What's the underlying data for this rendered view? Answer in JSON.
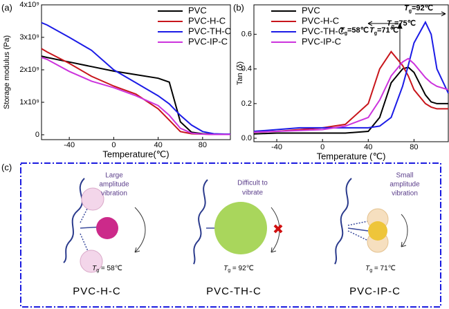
{
  "chart_data": [
    {
      "type": "line",
      "panel_label": "(a)",
      "ylabel": "Storage modulus (Pa)",
      "xlabel": "Temperature(℃)",
      "xlim": [
        -65,
        105
      ],
      "xticks": [
        -40,
        0,
        40,
        80
      ],
      "ylim": [
        -150000000,
        4000000000
      ],
      "yticks": [
        0,
        {
          "value": 1000000000,
          "label": "1x10⁹"
        },
        {
          "value": 2000000000,
          "label": "2x10⁹"
        },
        {
          "value": 3000000000,
          "label": "3x10⁹"
        },
        {
          "value": 4000000000,
          "label": "4x10⁹"
        }
      ],
      "legend": "top-right",
      "x": [
        -65,
        -60,
        -40,
        -20,
        0,
        20,
        40,
        50,
        60,
        70,
        80,
        90,
        100,
        105
      ],
      "series": [
        {
          "name": "PVC",
          "color": "#000000",
          "values": [
            2420000000,
            2380000000,
            2240000000,
            2100000000,
            1960000000,
            1850000000,
            1740000000,
            1620000000,
            400000000,
            80000000,
            30000000,
            20000000,
            10000000,
            10000000
          ]
        },
        {
          "name": "PVC-H-C",
          "color": "#c8151b",
          "values": [
            2650000000,
            2550000000,
            2200000000,
            1800000000,
            1500000000,
            1250000000,
            800000000,
            450000000,
            100000000,
            30000000,
            20000000,
            10000000,
            10000000,
            10000000
          ]
        },
        {
          "name": "PVC-TH-C",
          "color": "#1b1be6",
          "values": [
            3450000000,
            3380000000,
            3000000000,
            2600000000,
            2000000000,
            1600000000,
            1200000000,
            950000000,
            600000000,
            300000000,
            100000000,
            30000000,
            20000000,
            20000000
          ]
        },
        {
          "name": "PVC-IP-C",
          "color": "#cc33dd",
          "values": [
            2380000000,
            2320000000,
            1950000000,
            1650000000,
            1450000000,
            1200000000,
            900000000,
            600000000,
            200000000,
            50000000,
            20000000,
            10000000,
            10000000,
            10000000
          ]
        }
      ]
    },
    {
      "type": "line",
      "panel_label": "(b)",
      "ylabel": "Tan (δ)",
      "xlabel": "Temperature (℃)",
      "xlim": [
        -60,
        110
      ],
      "xticks": [
        -40,
        0,
        40,
        80
      ],
      "ylim": [
        -0.02,
        0.77
      ],
      "yticks": [
        {
          "value": 0,
          "label": "0.0"
        },
        0.2,
        0.4,
        0.6
      ],
      "legend": "top-left",
      "x": [
        -60,
        -40,
        -20,
        0,
        20,
        40,
        50,
        60,
        70,
        75,
        80,
        90,
        95,
        100,
        110
      ],
      "series": [
        {
          "name": "PVC",
          "color": "#000000",
          "values": [
            0.025,
            0.03,
            0.03,
            0.03,
            0.03,
            0.04,
            0.12,
            0.32,
            0.4,
            0.41,
            0.38,
            0.25,
            0.21,
            0.2,
            0.2
          ]
        },
        {
          "name": "PVC-H-C",
          "color": "#c8151b",
          "values": [
            0.035,
            0.04,
            0.05,
            0.06,
            0.08,
            0.2,
            0.4,
            0.5,
            0.42,
            0.36,
            0.28,
            0.2,
            0.18,
            0.17,
            0.17
          ]
        },
        {
          "name": "PVC-TH-C",
          "color": "#1b1be6",
          "values": [
            0.04,
            0.05,
            0.06,
            0.06,
            0.06,
            0.06,
            0.07,
            0.12,
            0.3,
            0.42,
            0.55,
            0.67,
            0.6,
            0.4,
            0.26
          ]
        },
        {
          "name": "PVC-IP-C",
          "color": "#cc33dd",
          "values": [
            0.035,
            0.04,
            0.045,
            0.05,
            0.07,
            0.12,
            0.22,
            0.36,
            0.44,
            0.46,
            0.43,
            0.35,
            0.32,
            0.3,
            0.28
          ]
        }
      ],
      "annotations": [
        {
          "symbol": "T",
          "subscript": "g",
          "text": "=58℃",
          "color": "#c8151b"
        },
        {
          "symbol": "T",
          "subscript": "g",
          "text": "=71℃",
          "color": "#cc33dd"
        },
        {
          "symbol": "T",
          "subscript": "g",
          "text": "=75℃",
          "color": "#000000"
        },
        {
          "symbol": "T",
          "subscript": "g",
          "text": "=92℃",
          "color": "#1b1be6"
        }
      ]
    }
  ],
  "diagram": {
    "panel_label": "(c)",
    "items": [
      {
        "note": [
          "Large",
          "amplitude",
          "vibration"
        ],
        "tg_symbol": "T",
        "tg_subscript": "g",
        "tg_value": " = 58℃",
        "name": "PVC-H-C"
      },
      {
        "note": [
          "Difficult to",
          "vibrate"
        ],
        "tg_symbol": "T",
        "tg_subscript": "g",
        "tg_value": " = 92℃",
        "name": "PVC-TH-C"
      },
      {
        "note": [
          "Small",
          "amplitude",
          "vibration"
        ],
        "tg_symbol": "T",
        "tg_subscript": "g",
        "tg_value": " = 71℃",
        "name": "PVC-IP-C"
      }
    ]
  }
}
